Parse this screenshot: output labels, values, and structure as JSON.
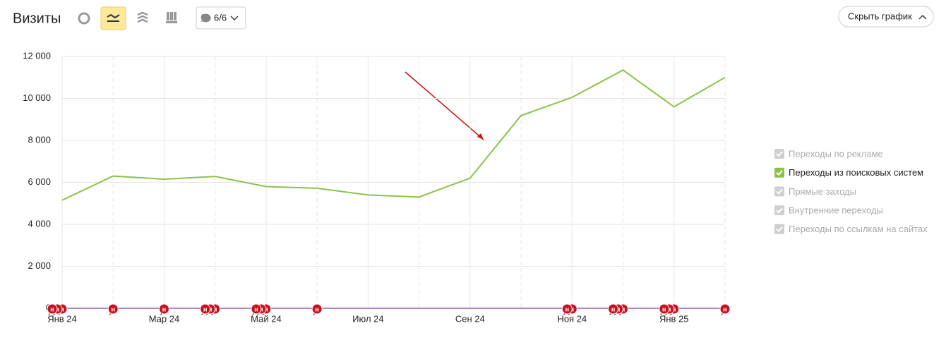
{
  "header": {
    "title": "Визиты",
    "notes_filter": "6/6",
    "hide_button": "Скрыть график"
  },
  "chart_data": {
    "type": "line",
    "categories": [
      "Янв 24",
      null,
      "Мар 24",
      null,
      "Май 24",
      null,
      "Июл 24",
      null,
      "Сен 24",
      null,
      "Ноя 24",
      null,
      "Янв 25",
      null
    ],
    "series": [
      {
        "name": "Переходы по рекламе",
        "visible": false
      },
      {
        "name": "Переходы из поисковых систем",
        "visible": true,
        "color": "#8bc34a",
        "values": [
          5150,
          6300,
          6150,
          6280,
          5800,
          5720,
          5400,
          5300,
          6200,
          9180,
          10050,
          11350,
          9600,
          11000
        ]
      },
      {
        "name": "Прямые заходы",
        "visible": false
      },
      {
        "name": "Внутренние переходы",
        "visible": false
      },
      {
        "name": "Переходы по ссылкам на сайтах",
        "visible": false
      }
    ],
    "ylim": [
      0,
      12000
    ],
    "yticks": [
      0,
      {
        "value": 2000,
        "label": "2 000"
      },
      {
        "value": 4000,
        "label": "4 000"
      },
      {
        "value": 6000,
        "label": "6 000"
      },
      {
        "value": 8000,
        "label": "8 000"
      },
      {
        "value": 10000,
        "label": "10 000"
      },
      {
        "value": 12000,
        "label": "12 000"
      }
    ],
    "grid": true,
    "legend": "right",
    "annotations": {
      "label": "н",
      "positions": [
        0,
        0,
        0,
        1,
        2,
        3,
        3,
        3,
        4,
        4,
        4,
        5,
        10,
        10,
        11,
        11,
        11,
        12,
        12,
        12,
        13
      ]
    }
  }
}
